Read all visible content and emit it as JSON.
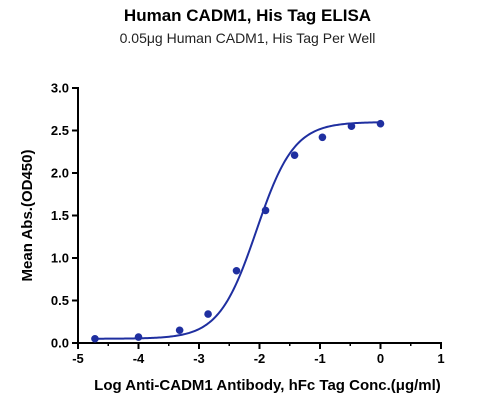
{
  "chart_data": {
    "type": "scatter",
    "title": "Human CADM1, His Tag ELISA",
    "subtitle": "0.05μg Human CADM1, His Tag Per Well",
    "xlabel": "Log Anti-CADM1 Antibody, hFc Tag Conc.(μg/ml)",
    "ylabel": "Mean Abs.(OD450)",
    "xlim": [
      -5,
      1
    ],
    "ylim": [
      0,
      3.0
    ],
    "xticks": [
      "-5",
      "-4",
      "-3",
      "-2",
      "-1",
      "0",
      "1"
    ],
    "yticks": [
      "0.0",
      "0.5",
      "1.0",
      "1.5",
      "2.0",
      "2.5",
      "3.0"
    ],
    "grid": false,
    "color": "#1f2fa0",
    "series": [
      {
        "x": [
          -4.72,
          -4.0,
          -3.32,
          -2.85,
          -2.38,
          -1.9,
          -1.42,
          -0.96,
          -0.48,
          0.0
        ],
        "y": [
          0.05,
          0.07,
          0.15,
          0.34,
          0.85,
          1.56,
          2.21,
          2.42,
          2.55,
          2.58
        ]
      }
    ],
    "fit": {
      "bottom": 0.05,
      "top": 2.6,
      "logEC50": -2.05,
      "hill": 1.4
    }
  }
}
